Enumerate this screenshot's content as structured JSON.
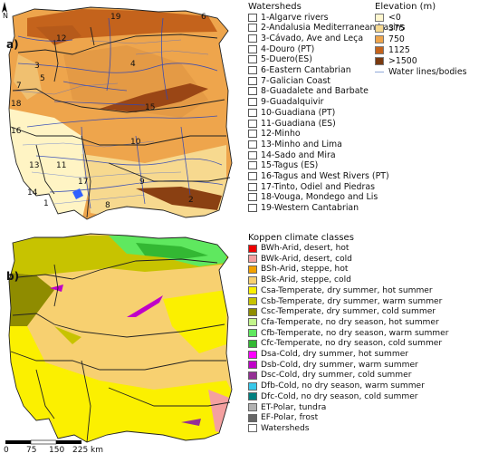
{
  "panels": {
    "a": "a)",
    "b": "b)"
  },
  "north_label": "N",
  "watersheds_title": "Watersheds",
  "watersheds": [
    "1-Algarve rivers",
    "2-Andalusia Mediterranean basins",
    "3-Cávado, Ave and Leça",
    "4-Douro (PT)",
    "5-Duero(ES)",
    "6-Eastern Cantabrian",
    "7-Galician Coast",
    "8-Guadalete and Barbate",
    "9-Guadalquivir",
    "10-Guadiana (PT)",
    "11-Guadiana (ES)",
    "12-Minho",
    "13-Minho and Lima",
    "14-Sado and Mira",
    "15-Tagus (ES)",
    "16-Tagus and West Rivers (PT)",
    "17-Tinto, Odiel and Piedras",
    "18-Vouga, Mondego and Lis",
    "19-Western Cantabrian"
  ],
  "map_numbers": [
    "19",
    "6",
    "12",
    "3",
    "4",
    "5",
    "7",
    "18",
    "15",
    "16",
    "10",
    "14",
    "11",
    "9",
    "17",
    "2",
    "13",
    "1",
    "8"
  ],
  "elevation_title": "Elevation (m)",
  "elevation_classes": [
    {
      "label": "<0",
      "color": "#fff7cf"
    },
    {
      "label": "375",
      "color": "#f7d98f"
    },
    {
      "label": "750",
      "color": "#eea54c"
    },
    {
      "label": "1125",
      "color": "#c4631c"
    },
    {
      "label": ">1500",
      "color": "#7a3a10"
    }
  ],
  "water_label": "Water lines/bodies",
  "koppen_title": "Koppen climate classes",
  "koppen_classes": [
    {
      "label": "BWh-Arid, desert, hot",
      "color": "#ee0000"
    },
    {
      "label": "BWk-Arid, desert, cold",
      "color": "#f4a0a0"
    },
    {
      "label": "BSh-Arid, steppe, hot",
      "color": "#f2a100"
    },
    {
      "label": "BSk-Arid, steppe, cold",
      "color": "#f7d070"
    },
    {
      "label": "Csa-Temperate, dry summer, hot summer",
      "color": "#fbf000"
    },
    {
      "label": "Csb-Temperate, dry summer, warm summer",
      "color": "#c7c300"
    },
    {
      "label": "Csc-Temperate, dry summer, cold summer",
      "color": "#8f8c00"
    },
    {
      "label": "Cfa-Temperate, no dry season, hot summer",
      "color": "#c3f58c"
    },
    {
      "label": "Cfb-Temperate, no dry season, warm summer",
      "color": "#5fe85f"
    },
    {
      "label": "Cfc-Temperate, no dry season, cold summer",
      "color": "#33b833"
    },
    {
      "label": "Dsa-Cold, dry summer, hot summer",
      "color": "#ff00ff"
    },
    {
      "label": "Dsb-Cold, dry summer, warm summer",
      "color": "#c000c8"
    },
    {
      "label": "Dsc-Cold, dry summer, cold summer",
      "color": "#952f95"
    },
    {
      "label": "Dfb-Cold, no dry season, warm summer",
      "color": "#38c8ea"
    },
    {
      "label": "Dfc-Cold, no dry season, cold summer",
      "color": "#008080"
    },
    {
      "label": "ET-Polar, tundra",
      "color": "#b2b2b2"
    },
    {
      "label": "EF-Polar, frost",
      "color": "#666666"
    },
    {
      "label": "Watersheds",
      "color": "#ffffff"
    }
  ],
  "scale_bar": {
    "labels": [
      "0",
      "75",
      "150",
      "225 km"
    ]
  }
}
